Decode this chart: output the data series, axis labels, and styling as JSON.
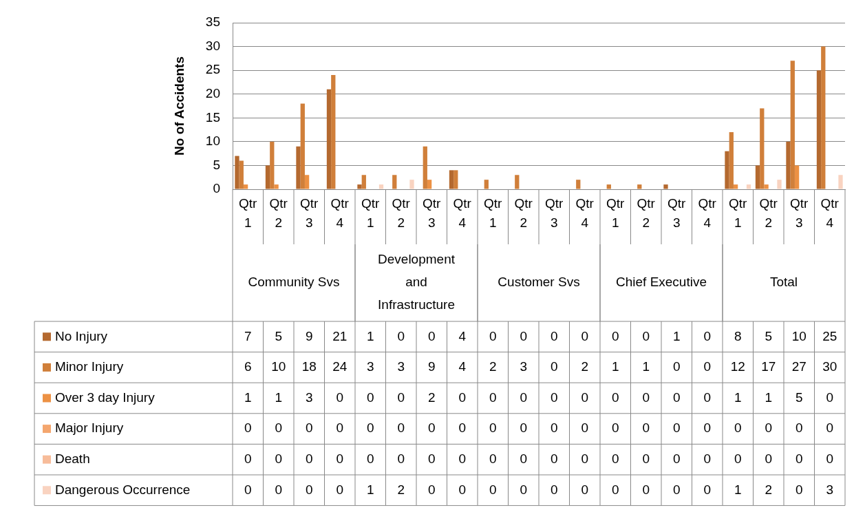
{
  "chart_data": {
    "type": "bar",
    "ylabel": "No of Accidents",
    "categories": [
      "Qtr 1",
      "Qtr 2",
      "Qtr 3",
      "Qtr 4",
      "Qtr 1",
      "Qtr 2",
      "Qtr 3",
      "Qtr 4",
      "Qtr 1",
      "Qtr 2",
      "Qtr 3",
      "Qtr 4",
      "Qtr 1",
      "Qtr 2",
      "Qtr 3",
      "Qtr 4",
      "Qtr 1",
      "Qtr 2",
      "Qtr 3",
      "Qtr 4"
    ],
    "annotations": [
      "Community Svs",
      "Development and Infrastructure",
      "Customer Svs",
      "Chief Executive",
      "Total"
    ],
    "series": [
      {
        "name": "No Injury",
        "color": "#b4692f",
        "values": [
          7,
          5,
          9,
          21,
          1,
          0,
          0,
          4,
          0,
          0,
          0,
          0,
          0,
          0,
          1,
          0,
          8,
          5,
          10,
          25
        ]
      },
      {
        "name": "Minor Injury",
        "color": "#d07f3a",
        "values": [
          6,
          10,
          18,
          24,
          3,
          3,
          9,
          4,
          2,
          3,
          0,
          2,
          1,
          1,
          0,
          0,
          12,
          17,
          27,
          30
        ]
      },
      {
        "name": "Over 3 day Injury",
        "color": "#ec9144",
        "values": [
          1,
          1,
          3,
          0,
          0,
          0,
          2,
          0,
          0,
          0,
          0,
          0,
          0,
          0,
          0,
          0,
          1,
          1,
          5,
          0
        ]
      },
      {
        "name": "Major Injury",
        "color": "#f4a66e",
        "values": [
          0,
          0,
          0,
          0,
          0,
          0,
          0,
          0,
          0,
          0,
          0,
          0,
          0,
          0,
          0,
          0,
          0,
          0,
          0,
          0
        ]
      },
      {
        "name": "Death",
        "color": "#f7bc9a",
        "values": [
          0,
          0,
          0,
          0,
          0,
          0,
          0,
          0,
          0,
          0,
          0,
          0,
          0,
          0,
          0,
          0,
          0,
          0,
          0,
          0
        ]
      },
      {
        "name": "Dangerous Occurrence",
        "color": "#f9d3c0",
        "values": [
          0,
          0,
          0,
          0,
          1,
          2,
          0,
          0,
          0,
          0,
          0,
          0,
          0,
          0,
          0,
          0,
          1,
          2,
          0,
          3
        ]
      }
    ],
    "ylim": [
      0,
      35
    ],
    "yticks": [
      0,
      5,
      10,
      15,
      20,
      25,
      30,
      35
    ],
    "grid": "y",
    "legend": "bottom",
    "data_labels": true
  }
}
